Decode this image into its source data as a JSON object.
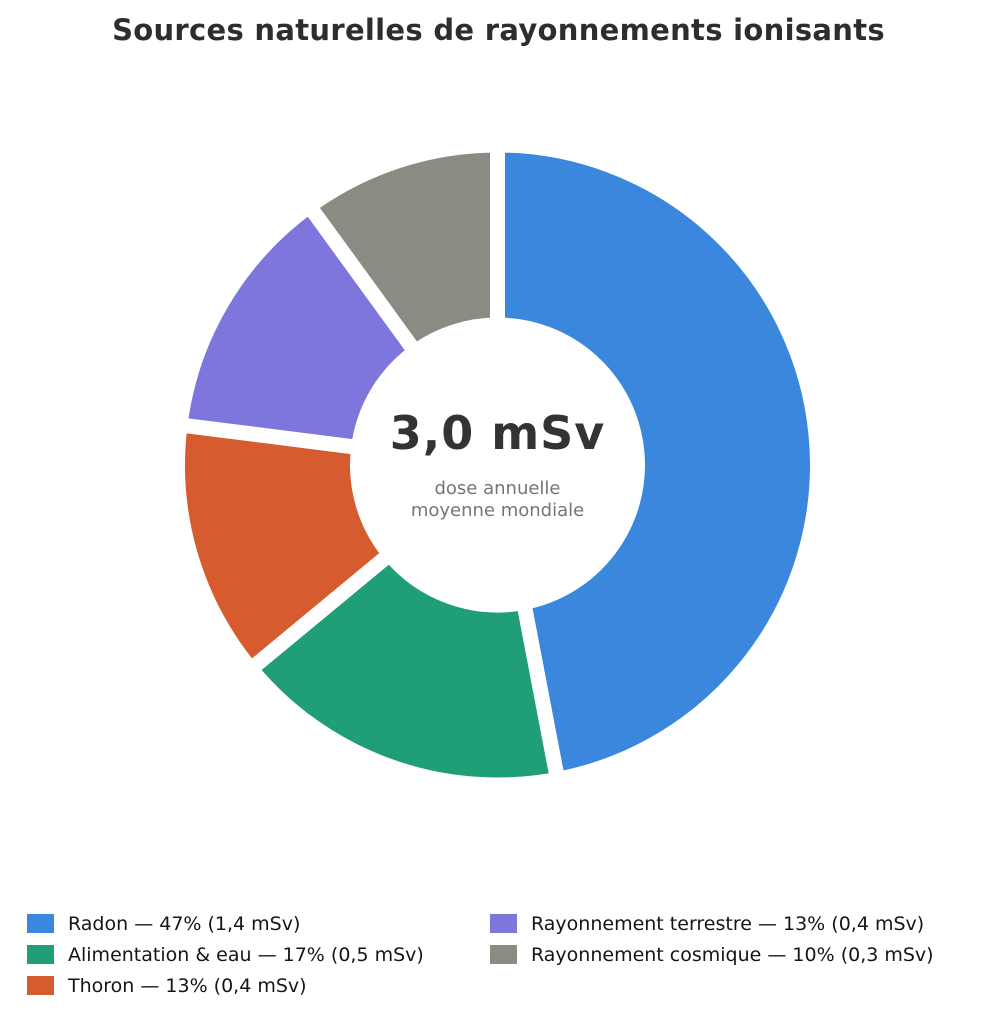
{
  "page": {
    "background_color": "#ffffff"
  },
  "title": "Sources naturelles de rayonnements ionisants",
  "center": {
    "value": "3,0 mSv",
    "subtitle_lines": [
      "dose annuelle",
      "moyenne mondiale"
    ]
  },
  "chart_data": {
    "type": "pie",
    "subtype": "donut",
    "title": "Sources naturelles de rayonnements ionisants",
    "center_label": "3,0 mSv",
    "center_sublabel": "dose annuelle moyenne mondiale",
    "total_value_msv": 3.0,
    "units": "mSv",
    "start_angle_deg": 90,
    "direction": "clockwise",
    "inner_radius_ratio": 0.47,
    "slice_gap_color": "#ffffff",
    "legend_position": "bottom",
    "legend_columns": 2,
    "legend_column_split": 3,
    "slices": [
      {
        "id": "radon",
        "label": "Radon",
        "percent": 47,
        "value_msv": 1.4,
        "dose_label": "1,4 mSv",
        "color": "#3a87dd",
        "legend_label": "Radon — 47% (1,4 mSv)"
      },
      {
        "id": "alimentation-eau",
        "label": "Alimentation & eau",
        "percent": 17,
        "value_msv": 0.5,
        "dose_label": "0,5 mSv",
        "color": "#1f9e77",
        "legend_label": "Alimentation & eau — 17% (0,5 mSv)"
      },
      {
        "id": "thoron",
        "label": "Thoron",
        "percent": 13,
        "value_msv": 0.4,
        "dose_label": "0,4 mSv",
        "color": "#d65c2f",
        "legend_label": "Thoron — 13% (0,4 mSv)"
      },
      {
        "id": "rayonnement-terrestre",
        "label": "Rayonnement terrestre",
        "percent": 13,
        "value_msv": 0.4,
        "dose_label": "0,4 mSv",
        "color": "#7d77dd",
        "legend_label": "Rayonnement terrestre — 13% (0,4 mSv)"
      },
      {
        "id": "rayonnement-cosmique",
        "label": "Rayonnement cosmique",
        "percent": 10,
        "value_msv": 0.3,
        "dose_label": "0,3 mSv",
        "color": "#8a8b83",
        "legend_label": "Rayonnement cosmique — 10% (0,3 mSv)"
      }
    ]
  }
}
